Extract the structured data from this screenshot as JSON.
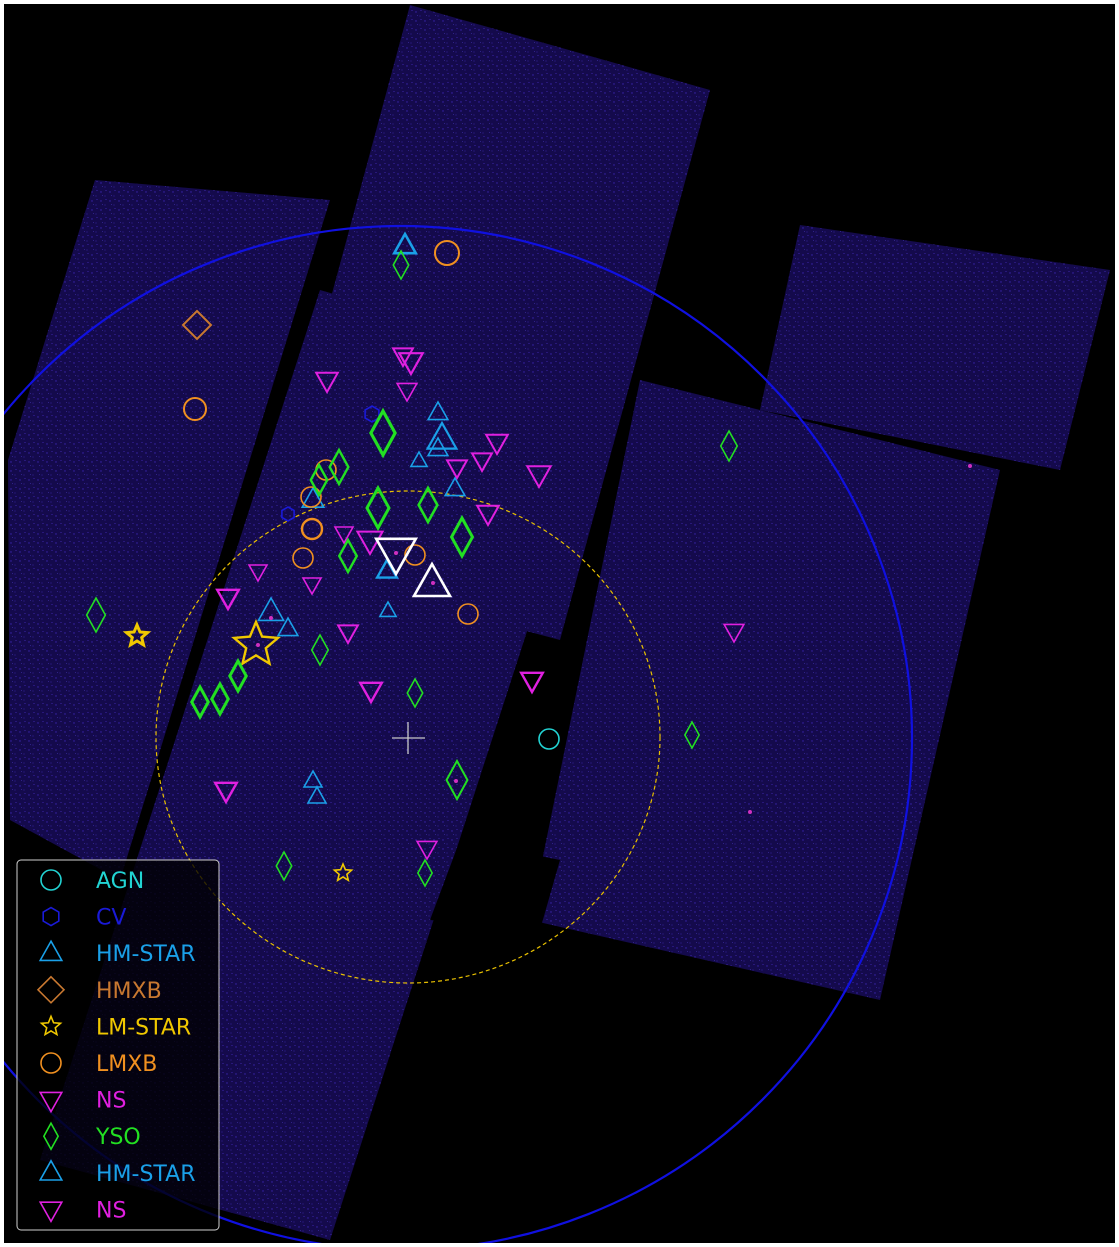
{
  "colors": {
    "background": "#000000",
    "frame_border": "#ffffff",
    "exposure": "#1a0d60",
    "exposure_dots": "#3a24b0",
    "fov_circle": "#1010e0",
    "inner_circle": "#e8c000",
    "crosshair": "#c8c8c8",
    "AGN": "#22d3d3",
    "CV": "#1a1ad8",
    "HM-STAR": "#1aa0e8",
    "HMXB": "#c87830",
    "LM-STAR": "#f0c800",
    "LMXB": "#f09020",
    "NS": "#e020e0",
    "YSO": "#22e022",
    "highlight": "#ffffff"
  },
  "legend": {
    "items": [
      {
        "label": "AGN",
        "class": "AGN",
        "marker": "circle-icon"
      },
      {
        "label": "CV",
        "class": "CV",
        "marker": "hexagon-icon"
      },
      {
        "label": "HM-STAR",
        "class": "HM-STAR",
        "marker": "triangle-up-icon"
      },
      {
        "label": "HMXB",
        "class": "HMXB",
        "marker": "diamond-icon"
      },
      {
        "label": "LM-STAR",
        "class": "LM-STAR",
        "marker": "star-icon"
      },
      {
        "label": "LMXB",
        "class": "LMXB",
        "marker": "circle-icon"
      },
      {
        "label": "NS",
        "class": "NS",
        "marker": "triangle-down-icon"
      },
      {
        "label": "YSO",
        "class": "YSO",
        "marker": "thin-diamond-icon"
      },
      {
        "label": "HM-STAR",
        "class": "HM-STAR",
        "marker": "triangle-up-icon"
      },
      {
        "label": "NS",
        "class": "NS",
        "marker": "triangle-down-icon"
      }
    ]
  }
}
